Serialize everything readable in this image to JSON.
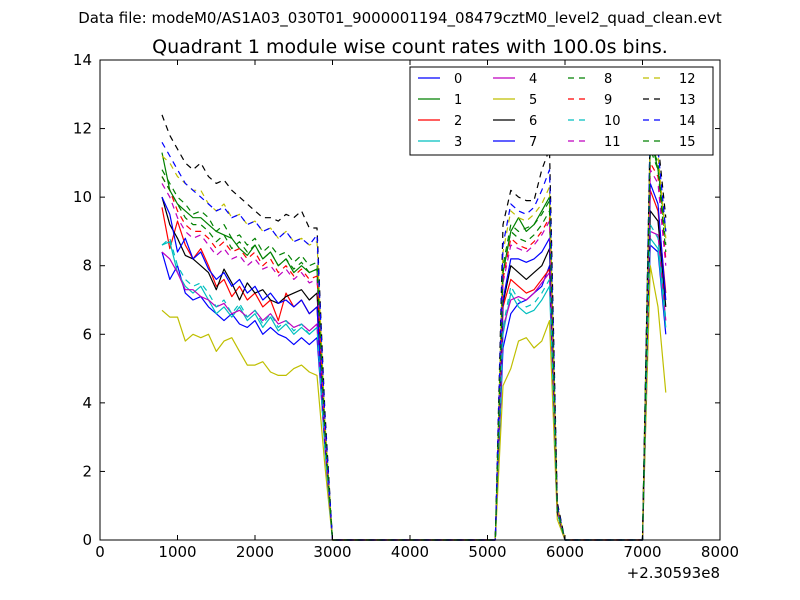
{
  "chart_data": {
    "type": "line",
    "suptitle": "Data file: modeM0/AS1A03_030T01_9000001194_08479cztM0_level2_quad_clean.evt",
    "title": "Quadrant 1 module wise count rates with 100.0s bins.",
    "xlabel": "",
    "ylabel": "",
    "x_offset_label": "+2.30593e8",
    "xlim": [
      0,
      8000
    ],
    "ylim": [
      0,
      14
    ],
    "x_ticks": [
      0,
      1000,
      2000,
      3000,
      4000,
      5000,
      6000,
      7000,
      8000
    ],
    "y_ticks": [
      0,
      2,
      4,
      6,
      8,
      10,
      12,
      14
    ],
    "legend_position": "top-right",
    "legend_columns": 4,
    "x": [
      800,
      900,
      1000,
      1100,
      1200,
      1300,
      1400,
      1500,
      1600,
      1700,
      1800,
      1900,
      2000,
      2100,
      2200,
      2300,
      2400,
      2500,
      2600,
      2700,
      2800,
      2900,
      3000,
      5100,
      5200,
      5300,
      5400,
      5500,
      5600,
      5700,
      5800,
      5900,
      6000,
      7000,
      7100,
      7200,
      7300
    ],
    "series": [
      {
        "name": "0",
        "color": "#0000ff",
        "dash": "solid",
        "values": [
          8.4,
          7.6,
          8.0,
          7.2,
          7.0,
          7.1,
          6.8,
          6.6,
          6.4,
          6.6,
          6.3,
          6.2,
          6.4,
          6.0,
          6.2,
          6.0,
          5.9,
          5.7,
          5.9,
          5.7,
          5.9,
          2.8,
          0,
          0,
          5.6,
          6.6,
          6.9,
          7.0,
          7.2,
          7.4,
          8.0,
          0.8,
          0,
          0,
          8.6,
          8.4,
          6.0
        ]
      },
      {
        "name": "1",
        "color": "#008000",
        "dash": "solid",
        "values": [
          11.3,
          10.2,
          9.8,
          9.6,
          9.4,
          9.4,
          9.2,
          9.0,
          8.9,
          8.8,
          8.5,
          8.3,
          8.6,
          8.2,
          8.4,
          8.0,
          8.2,
          7.8,
          8.0,
          7.8,
          7.9,
          3.2,
          0,
          0,
          7.8,
          9.0,
          9.4,
          9.0,
          9.2,
          9.6,
          10.0,
          0.9,
          0,
          0,
          11.8,
          10.8,
          9.0
        ]
      },
      {
        "name": "2",
        "color": "#ff0000",
        "dash": "solid",
        "values": [
          9.7,
          8.5,
          9.3,
          8.6,
          8.2,
          8.5,
          8.0,
          7.4,
          7.6,
          7.1,
          7.4,
          7.0,
          7.2,
          6.8,
          7.0,
          6.4,
          7.2,
          6.8,
          7.0,
          6.6,
          6.8,
          2.9,
          0,
          0,
          6.8,
          7.6,
          7.4,
          7.2,
          7.3,
          7.6,
          7.9,
          0.8,
          0,
          0,
          10.2,
          9.6,
          7.2
        ]
      },
      {
        "name": "3",
        "color": "#00bfbf",
        "dash": "solid",
        "values": [
          8.6,
          8.7,
          7.8,
          7.4,
          7.2,
          7.4,
          7.0,
          6.6,
          6.8,
          6.5,
          6.8,
          6.4,
          6.6,
          6.2,
          6.5,
          6.1,
          6.3,
          6.0,
          6.2,
          6.0,
          6.2,
          2.7,
          0,
          0,
          6.0,
          7.2,
          6.8,
          6.6,
          6.7,
          7.0,
          7.4,
          0.8,
          0,
          0,
          8.8,
          8.5,
          6.2
        ]
      },
      {
        "name": "4",
        "color": "#bf00bf",
        "dash": "solid",
        "values": [
          8.4,
          8.2,
          7.8,
          7.3,
          7.3,
          7.1,
          7.0,
          6.8,
          6.9,
          6.6,
          6.7,
          6.5,
          6.7,
          6.4,
          6.6,
          6.3,
          6.4,
          6.2,
          6.3,
          6.1,
          6.3,
          2.8,
          0,
          0,
          6.2,
          7.0,
          7.1,
          7.0,
          7.2,
          7.5,
          7.8,
          0.8,
          0,
          0,
          9.0,
          8.9,
          6.4
        ]
      },
      {
        "name": "5",
        "color": "#bfbf00",
        "dash": "solid",
        "values": [
          6.7,
          6.5,
          6.5,
          5.8,
          6.0,
          5.9,
          6.0,
          5.5,
          5.8,
          5.9,
          5.5,
          5.1,
          5.1,
          5.2,
          4.9,
          4.8,
          4.8,
          5.0,
          5.1,
          4.9,
          4.8,
          2.2,
          0,
          0,
          4.5,
          5.0,
          5.8,
          5.9,
          5.6,
          5.8,
          6.4,
          0.6,
          0,
          0,
          8.0,
          6.8,
          4.3
        ]
      },
      {
        "name": "6",
        "color": "#000000",
        "dash": "solid",
        "values": [
          10.0,
          9.2,
          8.8,
          8.3,
          8.2,
          8.0,
          7.8,
          7.3,
          7.9,
          7.5,
          7.0,
          7.5,
          7.2,
          7.3,
          7.0,
          6.9,
          7.1,
          7.2,
          7.3,
          7.0,
          7.2,
          3.0,
          0,
          0,
          6.9,
          8.0,
          7.8,
          7.6,
          7.8,
          8.0,
          8.5,
          0.8,
          0,
          0,
          9.6,
          9.3,
          6.8
        ]
      },
      {
        "name": "7",
        "color": "#0000ff",
        "dash": "solid",
        "values": [
          10.0,
          9.5,
          8.4,
          8.8,
          8.2,
          8.4,
          7.9,
          7.6,
          7.8,
          7.4,
          7.6,
          7.2,
          7.4,
          7.0,
          7.2,
          6.9,
          7.0,
          6.8,
          7.0,
          6.6,
          6.8,
          2.9,
          0,
          0,
          7.0,
          8.2,
          8.2,
          8.1,
          8.2,
          8.4,
          8.8,
          0.9,
          0,
          0,
          10.4,
          9.8,
          7.0
        ]
      },
      {
        "name": "8",
        "color": "#008000",
        "dash": "dashed",
        "values": [
          10.8,
          10.4,
          10.0,
          9.8,
          9.5,
          9.6,
          9.4,
          9.0,
          9.2,
          8.8,
          8.9,
          8.6,
          8.8,
          8.4,
          8.6,
          8.3,
          8.4,
          8.1,
          8.3,
          8.0,
          8.1,
          3.3,
          0,
          0,
          8.0,
          9.2,
          9.0,
          9.1,
          9.2,
          9.5,
          9.9,
          0.9,
          0,
          0,
          11.6,
          11.0,
          8.6
        ]
      },
      {
        "name": "9",
        "color": "#ff0000",
        "dash": "dashed",
        "values": [
          10.6,
          10.2,
          9.6,
          9.2,
          9.0,
          9.0,
          8.8,
          8.5,
          8.7,
          8.4,
          8.5,
          8.2,
          8.4,
          8.0,
          8.2,
          7.8,
          8.0,
          7.7,
          7.9,
          7.6,
          7.7,
          3.2,
          0,
          0,
          7.6,
          8.8,
          8.6,
          8.5,
          8.7,
          9.0,
          9.4,
          0.9,
          0,
          0,
          11.0,
          10.6,
          8.2
        ]
      },
      {
        "name": "10",
        "color": "#00bfbf",
        "dash": "dashed",
        "values": [
          8.6,
          8.8,
          8.0,
          7.6,
          7.4,
          7.5,
          7.2,
          6.8,
          7.0,
          6.6,
          6.9,
          6.5,
          6.7,
          6.3,
          6.6,
          6.2,
          6.4,
          6.1,
          6.3,
          6.0,
          6.2,
          2.7,
          0,
          0,
          6.2,
          7.4,
          7.0,
          6.8,
          6.9,
          7.2,
          7.6,
          0.8,
          0,
          0,
          9.2,
          8.8,
          6.4
        ]
      },
      {
        "name": "11",
        "color": "#bf00bf",
        "dash": "dashed",
        "values": [
          10.4,
          10.0,
          9.4,
          9.0,
          8.8,
          8.9,
          8.6,
          8.3,
          8.5,
          8.2,
          8.3,
          8.0,
          8.2,
          7.9,
          8.0,
          7.7,
          7.9,
          7.6,
          7.8,
          7.5,
          7.6,
          3.1,
          0,
          0,
          7.5,
          8.6,
          8.5,
          8.4,
          8.6,
          8.9,
          9.3,
          0.9,
          0,
          0,
          10.8,
          10.4,
          8.0
        ]
      },
      {
        "name": "12",
        "color": "#bfbf00",
        "dash": "dashed",
        "values": [
          11.2,
          11.0,
          10.6,
          10.4,
          10.2,
          10.2,
          9.8,
          9.6,
          9.8,
          9.4,
          9.5,
          9.2,
          9.3,
          9.0,
          9.1,
          8.8,
          9.0,
          8.7,
          8.8,
          8.6,
          8.7,
          3.5,
          0,
          0,
          8.4,
          9.6,
          9.4,
          9.3,
          9.5,
          9.8,
          10.3,
          1.0,
          0,
          0,
          12.0,
          11.2,
          8.8
        ]
      },
      {
        "name": "13",
        "color": "#000000",
        "dash": "dashed",
        "values": [
          12.4,
          11.8,
          11.4,
          11.0,
          10.8,
          11.0,
          10.6,
          10.4,
          10.5,
          10.2,
          10.0,
          9.8,
          9.6,
          9.4,
          9.4,
          9.3,
          9.5,
          9.4,
          9.6,
          9.1,
          9.1,
          3.8,
          0,
          0,
          9.2,
          10.2,
          10.0,
          9.9,
          9.9,
          10.8,
          11.4,
          1.1,
          0,
          0,
          12.2,
          11.6,
          9.4
        ]
      },
      {
        "name": "14",
        "color": "#0000ff",
        "dash": "dashed",
        "values": [
          11.6,
          11.2,
          10.8,
          10.4,
          10.2,
          10.0,
          9.8,
          9.6,
          9.7,
          9.4,
          9.5,
          9.2,
          9.3,
          9.0,
          9.1,
          8.8,
          9.0,
          8.7,
          8.8,
          8.6,
          8.9,
          3.6,
          0,
          0,
          8.6,
          9.8,
          9.6,
          9.5,
          9.7,
          10.2,
          10.8,
          1.0,
          0,
          0,
          12.2,
          11.4,
          9.0
        ]
      },
      {
        "name": "15",
        "color": "#008000",
        "dash": "dashed",
        "values": [
          10.6,
          10.2,
          9.8,
          9.4,
          9.2,
          9.2,
          9.0,
          8.7,
          8.9,
          8.5,
          8.7,
          8.4,
          8.6,
          8.2,
          8.4,
          8.0,
          8.2,
          7.9,
          8.1,
          7.8,
          7.9,
          3.2,
          0,
          0,
          7.8,
          9.0,
          8.8,
          8.7,
          8.9,
          9.2,
          9.6,
          0.9,
          0,
          0,
          11.4,
          10.8,
          8.4
        ]
      }
    ]
  }
}
